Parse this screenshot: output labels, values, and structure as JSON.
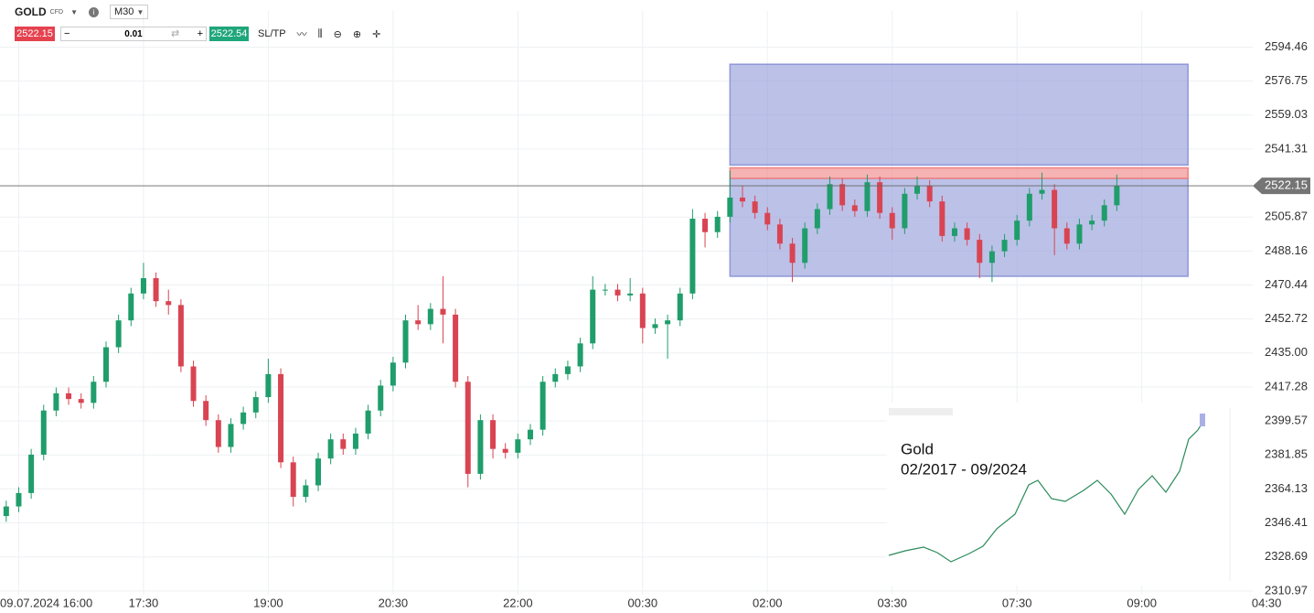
{
  "toolbar": {
    "symbol": "GOLD",
    "instrument_type": "CFD",
    "timeframe": "M30",
    "sell_price": "2522.15",
    "lot": "0.01",
    "buy_price": "2522.54",
    "sltp": "SL/TP"
  },
  "chart_data": {
    "type": "candlestick",
    "x": [
      0,
      1,
      2,
      3,
      4,
      5,
      6,
      7,
      8,
      9,
      10,
      11,
      12,
      13,
      14,
      15,
      16,
      17,
      18,
      19,
      20,
      21,
      22,
      23,
      24,
      25,
      26,
      27,
      28,
      29,
      30,
      31,
      32,
      33,
      34,
      35,
      36,
      37,
      38,
      39,
      40,
      41,
      42,
      43,
      44,
      45,
      46,
      47,
      48,
      49,
      50,
      51,
      52,
      53,
      54,
      55,
      56,
      57,
      58,
      59,
      60,
      61,
      62,
      63,
      64,
      65,
      66,
      67,
      68,
      69,
      70,
      71,
      72,
      73,
      74,
      75,
      76,
      77,
      78,
      79,
      80,
      81,
      82,
      83,
      84,
      85,
      86,
      87,
      88,
      89
    ],
    "open": [
      2350,
      2355,
      2362,
      2382,
      2405,
      2414,
      2411,
      2409,
      2420,
      2438,
      2452,
      2466,
      2474,
      2462,
      2460,
      2428,
      2410,
      2400,
      2386,
      2398,
      2404,
      2412,
      2424,
      2378,
      2360,
      2366,
      2380,
      2390,
      2385,
      2393,
      2405,
      2418,
      2430,
      2452,
      2450,
      2458,
      2455,
      2420,
      2372,
      2400,
      2385,
      2383,
      2390,
      2395,
      2420,
      2424,
      2428,
      2440,
      2468,
      2468,
      2465,
      2466,
      2448,
      2450,
      2452,
      2466,
      2505,
      2498,
      2506,
      2516,
      2514,
      2508,
      2502,
      2492,
      2482,
      2500,
      2510,
      2523,
      2512,
      2509,
      2524,
      2508,
      2500,
      2518,
      2522,
      2514,
      2496,
      2500,
      2494,
      2482,
      2488,
      2494,
      2504,
      2518,
      2520,
      2500,
      2492,
      2502,
      2504,
      2512
    ],
    "high": [
      2358,
      2365,
      2385,
      2408,
      2417,
      2417,
      2414,
      2423,
      2441,
      2455,
      2469,
      2482,
      2477,
      2468,
      2463,
      2431,
      2413,
      2403,
      2401,
      2407,
      2415,
      2432,
      2427,
      2381,
      2369,
      2383,
      2393,
      2393,
      2396,
      2408,
      2421,
      2433,
      2455,
      2460,
      2461,
      2475,
      2458,
      2423,
      2403,
      2403,
      2388,
      2393,
      2398,
      2423,
      2427,
      2431,
      2443,
      2475,
      2471,
      2471,
      2474,
      2469,
      2453,
      2455,
      2469,
      2510,
      2508,
      2509,
      2530,
      2522,
      2517,
      2511,
      2505,
      2495,
      2503,
      2513,
      2527,
      2526,
      2515,
      2528,
      2527,
      2511,
      2521,
      2527,
      2525,
      2517,
      2503,
      2503,
      2497,
      2491,
      2497,
      2507,
      2521,
      2529,
      2523,
      2503,
      2505,
      2507,
      2515,
      2528
    ],
    "low": [
      2347,
      2352,
      2359,
      2379,
      2402,
      2408,
      2406,
      2406,
      2417,
      2435,
      2449,
      2463,
      2459,
      2455,
      2425,
      2407,
      2397,
      2383,
      2383,
      2395,
      2401,
      2409,
      2375,
      2355,
      2357,
      2363,
      2377,
      2382,
      2382,
      2390,
      2402,
      2415,
      2427,
      2447,
      2447,
      2440,
      2417,
      2365,
      2369,
      2380,
      2380,
      2380,
      2387,
      2392,
      2417,
      2421,
      2425,
      2437,
      2465,
      2462,
      2462,
      2440,
      2445,
      2432,
      2449,
      2463,
      2490,
      2495,
      2503,
      2511,
      2505,
      2499,
      2489,
      2472,
      2479,
      2497,
      2507,
      2509,
      2506,
      2506,
      2505,
      2494,
      2497,
      2515,
      2511,
      2493,
      2493,
      2491,
      2474,
      2472,
      2485,
      2491,
      2501,
      2515,
      2486,
      2489,
      2489,
      2499,
      2501,
      2509
    ],
    "close": [
      2355,
      2362,
      2382,
      2405,
      2414,
      2411,
      2409,
      2420,
      2438,
      2452,
      2466,
      2474,
      2462,
      2460,
      2428,
      2410,
      2400,
      2386,
      2398,
      2404,
      2412,
      2424,
      2378,
      2360,
      2366,
      2380,
      2390,
      2385,
      2393,
      2405,
      2418,
      2430,
      2452,
      2450,
      2458,
      2455,
      2420,
      2372,
      2400,
      2385,
      2383,
      2390,
      2395,
      2420,
      2424,
      2428,
      2440,
      2468,
      2468,
      2465,
      2466,
      2448,
      2450,
      2452,
      2466,
      2505,
      2498,
      2506,
      2516,
      2514,
      2508,
      2502,
      2492,
      2482,
      2500,
      2510,
      2523,
      2512,
      2509,
      2524,
      2508,
      2500,
      2518,
      2522,
      2514,
      2496,
      2500,
      2494,
      2482,
      2488,
      2494,
      2504,
      2518,
      2520,
      2500,
      2492,
      2502,
      2504,
      2512,
      2522
    ],
    "up_color": "#1f9d6b",
    "down_color": "#d94452",
    "xlim": [
      -0.5,
      104.8
    ],
    "xticks": [
      {
        "value": 1,
        "label": "09.07.2024 16:00"
      },
      {
        "value": 11,
        "label": "17:30"
      },
      {
        "value": 21,
        "label": "19:00"
      },
      {
        "value": 31,
        "label": "20:30"
      },
      {
        "value": 41,
        "label": "22:00"
      },
      {
        "value": 51,
        "label": "00:30"
      },
      {
        "value": 61,
        "label": "02:00"
      },
      {
        "value": 71,
        "label": "03:30"
      },
      {
        "value": 81,
        "label": "07:30"
      },
      {
        "value": 91,
        "label": "09:00"
      },
      {
        "value": 101,
        "label": "04:30"
      }
    ],
    "ylim": [
      2309,
      2619
    ],
    "yticks": [
      2594.46,
      2576.75,
      2559.03,
      2541.31,
      2505.87,
      2488.16,
      2470.44,
      2452.72,
      {
        "value": 2435,
        "label": "2435.00"
      },
      2417.28,
      2399.57,
      2381.85,
      2364.13,
      2346.41,
      2328.69,
      2310.97
    ],
    "grid": true,
    "current_price": 2522.15,
    "zones": [
      {
        "x": [
          58,
          94.7
        ],
        "y": [
          2533,
          2585.5
        ],
        "color": "#8f97d8"
      },
      {
        "x": [
          58,
          94.7
        ],
        "y": [
          2475,
          2526
        ],
        "color": "#8f97d8"
      },
      {
        "x": [
          58,
          94.7
        ],
        "y": [
          2526,
          2531.5
        ],
        "color": "#f08080"
      }
    ],
    "inset": {
      "title": "Gold",
      "period": "02/2017 - 09/2024"
    }
  }
}
